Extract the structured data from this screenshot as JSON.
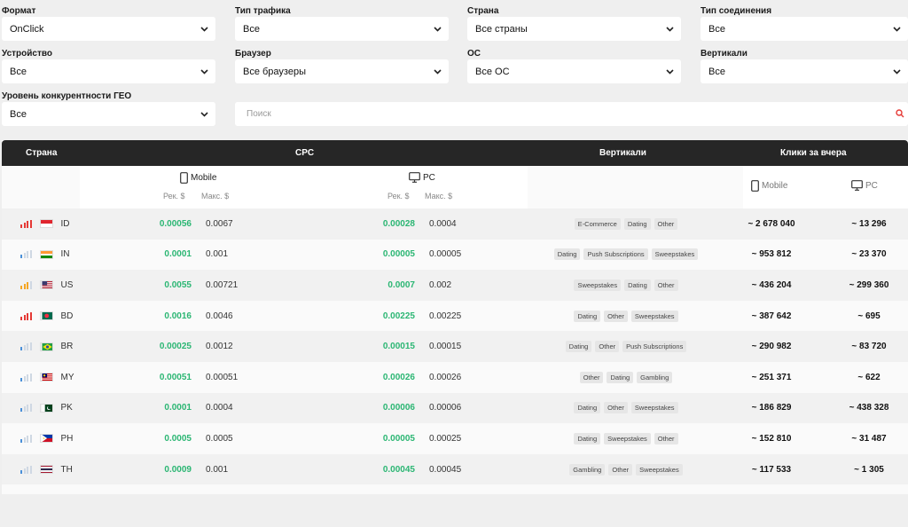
{
  "filters": {
    "format": {
      "label": "Формат",
      "value": "OnClick"
    },
    "traffic_type": {
      "label": "Тип трафика",
      "value": "Все"
    },
    "country": {
      "label": "Страна",
      "value": "Все страны"
    },
    "connection_type": {
      "label": "Тип соединения",
      "value": "Все"
    },
    "device": {
      "label": "Устройство",
      "value": "Все"
    },
    "browser": {
      "label": "Браузер",
      "value": "Все браузеры"
    },
    "os": {
      "label": "ОС",
      "value": "Все ОС"
    },
    "verticals": {
      "label": "Вертикали",
      "value": "Все"
    },
    "geo_competition": {
      "label": "Уровень конкурентности ГЕО",
      "value": "Все"
    }
  },
  "search": {
    "placeholder": "Поиск"
  },
  "table": {
    "headers": {
      "country": "Страна",
      "cpc": "CPC",
      "verticals": "Вертикали",
      "clicks": "Клики за вчера"
    },
    "sub": {
      "mobile": "Mobile",
      "pc": "PC",
      "rec": "Рек. $",
      "max": "Макс. $"
    },
    "rows": [
      {
        "code": "ID",
        "competition": "high",
        "mob_rec": "0.00056",
        "mob_max": "0.0067",
        "pc_rec": "0.00028",
        "pc_max": "0.0004",
        "tags": [
          "E-Commerce",
          "Dating",
          "Other"
        ],
        "clicks_mobile": "~ 2 678 040",
        "clicks_pc": "~ 13 296"
      },
      {
        "code": "IN",
        "competition": "low",
        "mob_rec": "0.0001",
        "mob_max": "0.001",
        "pc_rec": "0.00005",
        "pc_max": "0.00005",
        "tags": [
          "Dating",
          "Push Subscriptions",
          "Sweepstakes"
        ],
        "clicks_mobile": "~ 953 812",
        "clicks_pc": "~ 23 370"
      },
      {
        "code": "US",
        "competition": "medium",
        "mob_rec": "0.0055",
        "mob_max": "0.00721",
        "pc_rec": "0.0007",
        "pc_max": "0.002",
        "tags": [
          "Sweepstakes",
          "Dating",
          "Other"
        ],
        "clicks_mobile": "~ 436 204",
        "clicks_pc": "~ 299 360"
      },
      {
        "code": "BD",
        "competition": "high",
        "mob_rec": "0.0016",
        "mob_max": "0.0046",
        "pc_rec": "0.00225",
        "pc_max": "0.00225",
        "tags": [
          "Dating",
          "Other",
          "Sweepstakes"
        ],
        "clicks_mobile": "~ 387 642",
        "clicks_pc": "~ 695"
      },
      {
        "code": "BR",
        "competition": "low",
        "mob_rec": "0.00025",
        "mob_max": "0.0012",
        "pc_rec": "0.00015",
        "pc_max": "0.00015",
        "tags": [
          "Dating",
          "Other",
          "Push Subscriptions"
        ],
        "clicks_mobile": "~ 290 982",
        "clicks_pc": "~ 83 720"
      },
      {
        "code": "MY",
        "competition": "low",
        "mob_rec": "0.00051",
        "mob_max": "0.00051",
        "pc_rec": "0.00026",
        "pc_max": "0.00026",
        "tags": [
          "Other",
          "Dating",
          "Gambling"
        ],
        "clicks_mobile": "~ 251 371",
        "clicks_pc": "~ 622"
      },
      {
        "code": "PK",
        "competition": "low",
        "mob_rec": "0.0001",
        "mob_max": "0.0004",
        "pc_rec": "0.00006",
        "pc_max": "0.00006",
        "tags": [
          "Dating",
          "Other",
          "Sweepstakes"
        ],
        "clicks_mobile": "~ 186 829",
        "clicks_pc": "~ 438 328"
      },
      {
        "code": "PH",
        "competition": "low",
        "mob_rec": "0.0005",
        "mob_max": "0.0005",
        "pc_rec": "0.00005",
        "pc_max": "0.00025",
        "tags": [
          "Dating",
          "Sweepstakes",
          "Other"
        ],
        "clicks_mobile": "~ 152 810",
        "clicks_pc": "~ 31 487"
      },
      {
        "code": "TH",
        "competition": "low",
        "mob_rec": "0.0009",
        "mob_max": "0.001",
        "pc_rec": "0.00045",
        "pc_max": "0.00045",
        "tags": [
          "Gambling",
          "Other",
          "Sweepstakes"
        ],
        "clicks_mobile": "~ 117 533",
        "clicks_pc": "~ 1 305"
      }
    ]
  },
  "colors": {
    "accent_green": "#2bb673",
    "competition_high": "#e53935",
    "competition_medium": "#f5a623",
    "competition_low": "#4a90d9",
    "header_bg": "#262626",
    "search_icon": "#e53935"
  }
}
